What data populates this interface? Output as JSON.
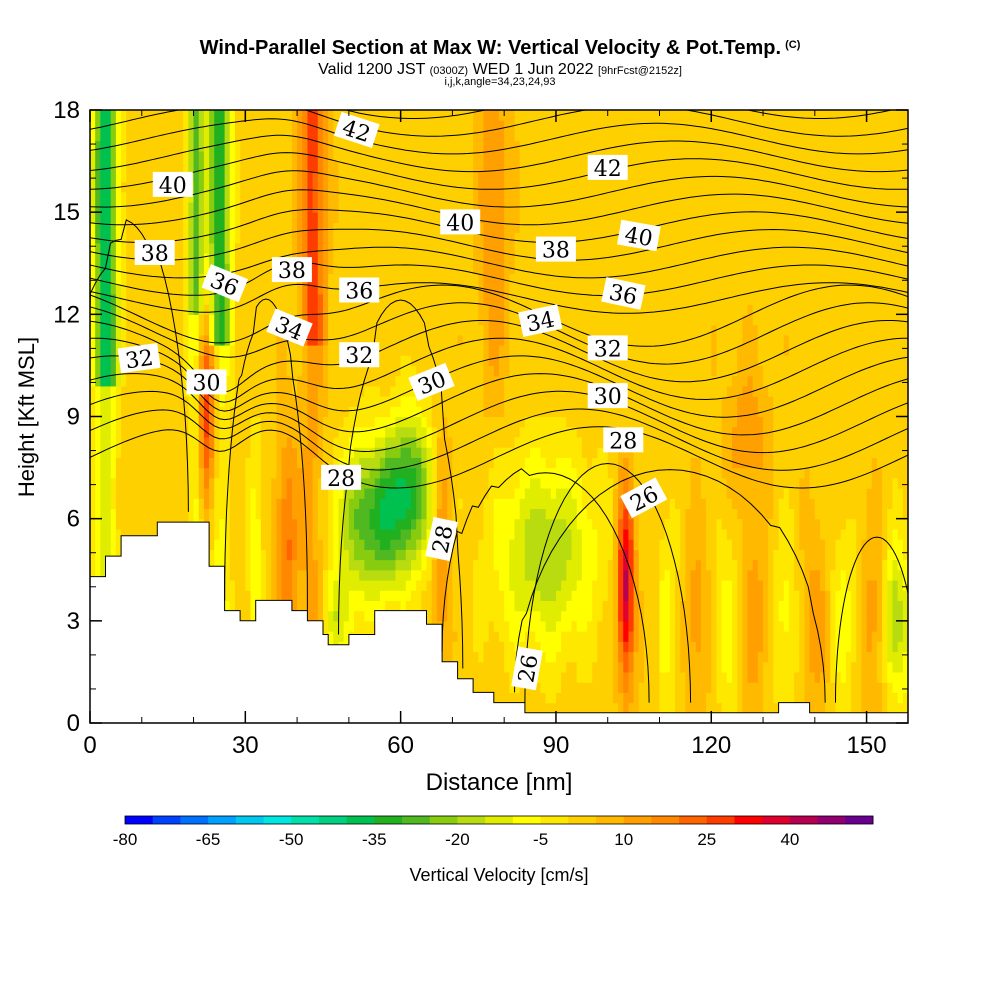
{
  "title": {
    "main": "Wind-Parallel Section at Max W: Vertical Velocity & Pot.Temp.",
    "copyright": "(C)",
    "valid_prefix": "Valid 1200 JST",
    "valid_utc": "(0300Z)",
    "valid_date": "WED 1 Jun 2022",
    "forecast": "[9hrFcst@2152z]",
    "indices": "i,j,k,angle=34,23,24,93"
  },
  "chart_data": {
    "type": "heatmap",
    "xlabel": "Distance [nm]",
    "ylabel": "Height [Kft MSL]",
    "xlim": [
      0,
      158
    ],
    "ylim": [
      0,
      18
    ],
    "x_ticks": [
      0,
      30,
      60,
      90,
      120,
      150
    ],
    "y_ticks": [
      0,
      3,
      6,
      9,
      12,
      15,
      18
    ],
    "colorbar": {
      "label": "Vertical Velocity [cm/s]",
      "tick_labels": [
        -80,
        -65,
        -50,
        -35,
        -20,
        -5,
        10,
        25,
        40
      ],
      "min": -80,
      "max": 50,
      "step": 5,
      "colors": [
        "#0000ff",
        "#0040ff",
        "#0070ff",
        "#00a0ff",
        "#00c8f0",
        "#00e6e0",
        "#00e0a8",
        "#00d080",
        "#00c050",
        "#20b020",
        "#50b820",
        "#88cc10",
        "#b8dc10",
        "#e0ec00",
        "#ffff00",
        "#ffe800",
        "#ffd000",
        "#ffba00",
        "#ffa000",
        "#ff8800",
        "#ff6400",
        "#ff3c00",
        "#ff0000",
        "#e00030",
        "#b80050",
        "#900070",
        "#6a0090"
      ]
    },
    "isentrope_labels": [
      {
        "text": "42",
        "x": 51.5,
        "y": 17.4,
        "rot": 18
      },
      {
        "text": "42",
        "x": 100,
        "y": 16.3,
        "rot": 0
      },
      {
        "text": "40",
        "x": 16,
        "y": 15.8,
        "rot": 0
      },
      {
        "text": "40",
        "x": 71.5,
        "y": 14.7,
        "rot": 0
      },
      {
        "text": "40",
        "x": 106,
        "y": 14.3,
        "rot": 10
      },
      {
        "text": "38",
        "x": 12.5,
        "y": 13.8,
        "rot": 0
      },
      {
        "text": "38",
        "x": 39,
        "y": 13.3,
        "rot": 0
      },
      {
        "text": "38",
        "x": 90,
        "y": 13.9,
        "rot": 0
      },
      {
        "text": "36",
        "x": 26,
        "y": 12.9,
        "rot": 22
      },
      {
        "text": "36",
        "x": 52,
        "y": 12.7,
        "rot": 0
      },
      {
        "text": "36",
        "x": 103,
        "y": 12.6,
        "rot": 12
      },
      {
        "text": "34",
        "x": 38.5,
        "y": 11.6,
        "rot": 22
      },
      {
        "text": "34",
        "x": 87,
        "y": 11.8,
        "rot": -12
      },
      {
        "text": "32",
        "x": 9.5,
        "y": 10.7,
        "rot": -8
      },
      {
        "text": "32",
        "x": 52,
        "y": 10.8,
        "rot": 0
      },
      {
        "text": "32",
        "x": 100,
        "y": 11.0,
        "rot": 0
      },
      {
        "text": "30",
        "x": 22.5,
        "y": 10.0,
        "rot": 0
      },
      {
        "text": "30",
        "x": 66,
        "y": 10.0,
        "rot": -22
      },
      {
        "text": "30",
        "x": 100,
        "y": 9.6,
        "rot": 0
      },
      {
        "text": "28",
        "x": 48.5,
        "y": 7.2,
        "rot": 0
      },
      {
        "text": "28",
        "x": 103,
        "y": 8.3,
        "rot": 0
      },
      {
        "text": "28",
        "x": 68,
        "y": 5.4,
        "rot": -78
      },
      {
        "text": "26",
        "x": 107,
        "y": 6.6,
        "rot": -28
      },
      {
        "text": "26",
        "x": 84.5,
        "y": 1.6,
        "rot": -80
      }
    ]
  }
}
